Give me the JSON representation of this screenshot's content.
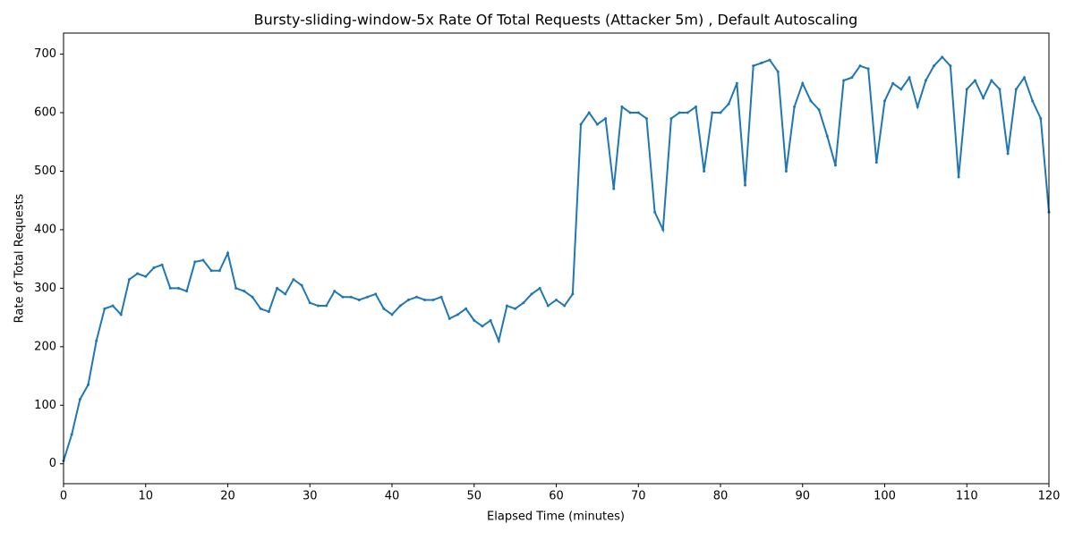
{
  "chart_data": {
    "type": "line",
    "title": "Bursty-sliding-window-5x Rate Of Total Requests (Attacker 5m) , Default Autoscaling",
    "x_label": "Elapsed Time (minutes)",
    "y_label": "Rate of Total Requests",
    "x": [
      0,
      1,
      2,
      3,
      4,
      5,
      6,
      7,
      8,
      9,
      10,
      11,
      12,
      13,
      14,
      15,
      16,
      17,
      18,
      19,
      20,
      21,
      22,
      23,
      24,
      25,
      26,
      27,
      28,
      29,
      30,
      31,
      32,
      33,
      34,
      35,
      36,
      37,
      38,
      39,
      40,
      41,
      42,
      43,
      44,
      45,
      46,
      47,
      48,
      49,
      50,
      51,
      52,
      53,
      54,
      55,
      56,
      57,
      58,
      59,
      60,
      61,
      62,
      63,
      64,
      65,
      66,
      67,
      68,
      69,
      70,
      71,
      72,
      73,
      74,
      75,
      76,
      77,
      78,
      79,
      80,
      81,
      82,
      83,
      84,
      85,
      86,
      87,
      88,
      89,
      90,
      91,
      92,
      93,
      94,
      95,
      96,
      97,
      98,
      99,
      100,
      101,
      102,
      103,
      104,
      105,
      106,
      107,
      108,
      109,
      110,
      111,
      112,
      113,
      114,
      115,
      116,
      117,
      118,
      119,
      120
    ],
    "series": [
      {
        "name": "Rate of Total Requests",
        "color": "#1f77b4",
        "values": [
          5,
          50,
          110,
          135,
          210,
          265,
          270,
          255,
          315,
          325,
          320,
          335,
          340,
          300,
          300,
          295,
          345,
          348,
          330,
          330,
          360,
          300,
          295,
          285,
          265,
          260,
          300,
          290,
          315,
          305,
          275,
          270,
          270,
          295,
          285,
          285,
          280,
          285,
          290,
          265,
          255,
          270,
          280,
          285,
          280,
          280,
          285,
          248,
          255,
          265,
          245,
          235,
          245,
          210,
          270,
          265,
          275,
          290,
          300,
          270,
          280,
          270,
          290,
          580,
          600,
          580,
          590,
          470,
          610,
          600,
          600,
          590,
          430,
          400,
          590,
          600,
          600,
          610,
          500,
          600,
          600,
          615,
          650,
          476,
          680,
          685,
          690,
          670,
          500,
          610,
          650,
          620,
          605,
          560,
          510,
          655,
          660,
          680,
          675,
          515,
          620,
          650,
          640,
          660,
          610,
          655,
          680,
          695,
          680,
          490,
          640,
          655,
          625,
          655,
          640,
          530,
          640,
          660,
          620,
          590,
          430
        ]
      }
    ],
    "xlim": [
      0,
      120
    ],
    "xticks": [
      0,
      10,
      20,
      30,
      40,
      50,
      60,
      70,
      80,
      90,
      100,
      110,
      120
    ],
    "ylim": [
      -34,
      736
    ],
    "yticks": [
      0,
      100,
      200,
      300,
      400,
      500,
      600,
      700
    ]
  }
}
